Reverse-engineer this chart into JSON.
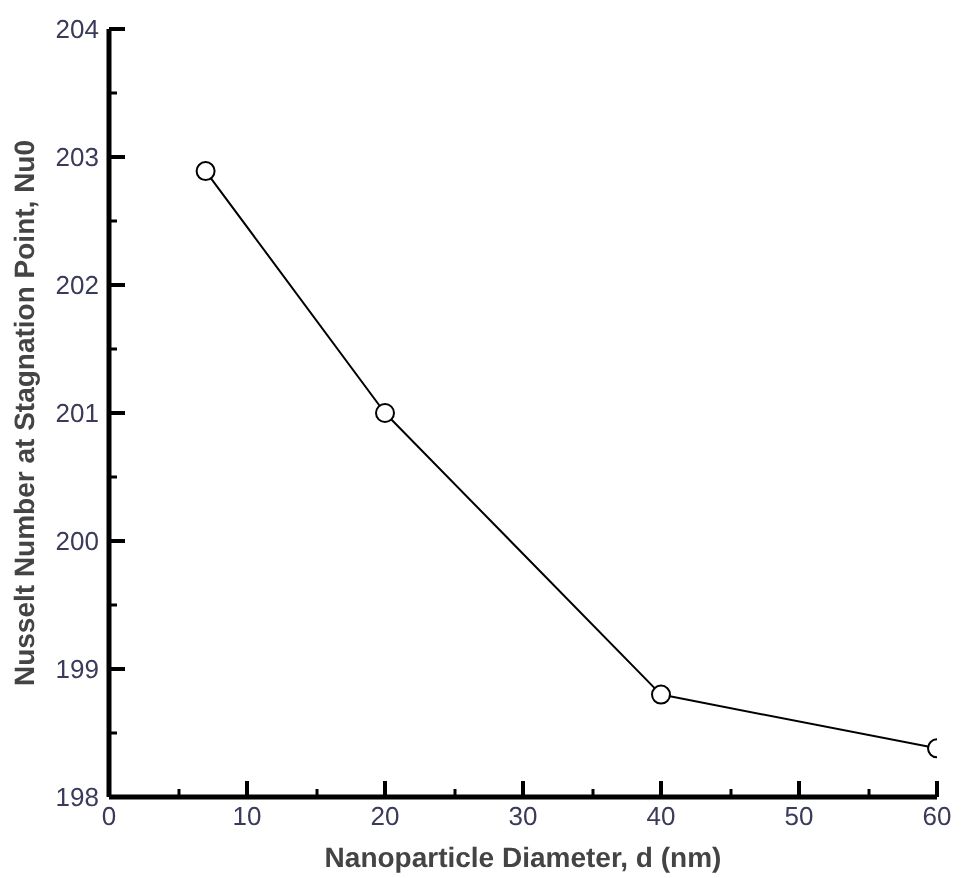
{
  "chart_data": {
    "type": "line",
    "xlabel": "Nanoparticle Diameter, d (nm)",
    "ylabel": "Nusselt Number at Stagnation Point, Nu0",
    "x": [
      7,
      20,
      40,
      60
    ],
    "series": [
      {
        "color": "#000000",
        "values": [
          202.89,
          201.0,
          198.8,
          198.38
        ]
      }
    ],
    "xlim": [
      0,
      60
    ],
    "ylim": [
      198,
      204
    ],
    "xticks": [
      0,
      10,
      20,
      30,
      40,
      50,
      60
    ],
    "yticks": [
      198,
      199,
      200,
      201,
      202,
      203,
      204
    ],
    "grid": false,
    "marker": "circle",
    "line_style": "solid"
  }
}
